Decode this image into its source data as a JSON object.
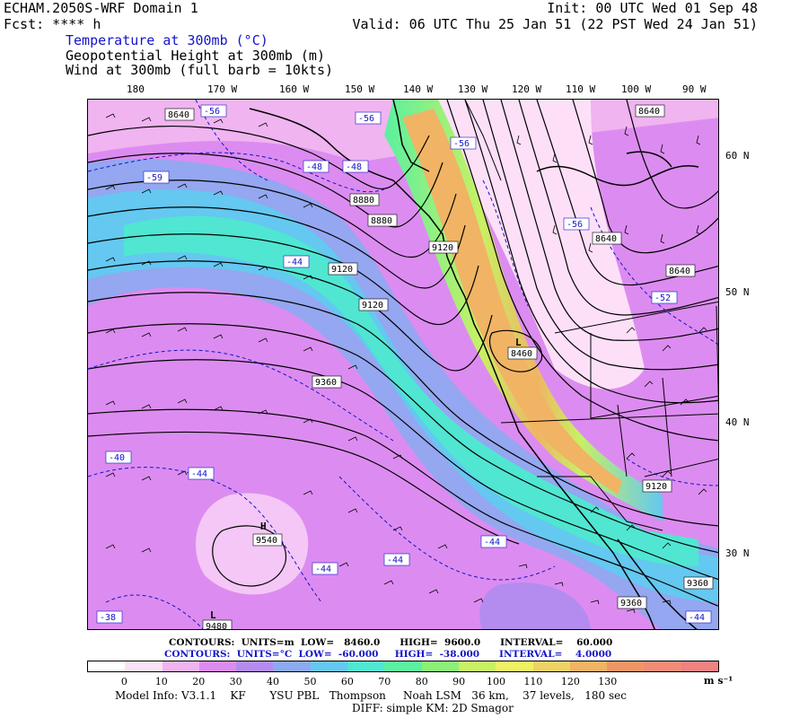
{
  "header": {
    "model": "ECHAM.2050S-WRF Domain 1",
    "fcst": "Fcst: **** h",
    "init": "Init: 00 UTC Wed 01 Sep 48",
    "valid": "Valid: 06 UTC Thu 25 Jan 51 (22 PST Wed 24 Jan 51)",
    "field1": "Temperature at 300mb (°C)",
    "field2": "Geopotential Height at 300mb (m)",
    "field3": "Wind at 300mb (full barb = 10kts)"
  },
  "axes": {
    "longitudes": [
      "180",
      "170 W",
      "160 W",
      "150 W",
      "140 W",
      "130 W",
      "120 W",
      "110 W",
      "100 W",
      "90 W"
    ],
    "latitudes": [
      "60 N",
      "50 N",
      "40 N",
      "30 N"
    ]
  },
  "map_labels": {
    "height": [
      "8640",
      "8640",
      "8880",
      "8880",
      "9120",
      "9120",
      "9360",
      "9360",
      "9360",
      "9120",
      "8640",
      "8460",
      "9540",
      "9480",
      "8640",
      "9120"
    ],
    "temperature": [
      "-56",
      "-56",
      "-56",
      "-59",
      "-48",
      "-48",
      "-44",
      "-56",
      "-52",
      "-40",
      "-44",
      "-44",
      "-44",
      "-44",
      "-38",
      "-44"
    ],
    "highs_lows": [
      "H",
      "L",
      "L"
    ]
  },
  "contour_info": {
    "line1": "CONTOURS:  UNITS=m  LOW=   8460.0      HIGH=  9600.0      INTERVAL=    60.000",
    "line2": "CONTOURS:  UNITS=°C  LOW=  -60.000     HIGH=  -38.000      INTERVAL=    4.0000"
  },
  "colorbar": {
    "colors": [
      "#ffffff",
      "#fde0f8",
      "#f0b4f0",
      "#dc8cf0",
      "#b48cf0",
      "#8caaf0",
      "#64c8f0",
      "#50e6d2",
      "#5af0a0",
      "#8cf078",
      "#c8f064",
      "#f0f064",
      "#f0d264",
      "#f0b464",
      "#f09664",
      "#f08c78",
      "#f08282"
    ],
    "labels": [
      "0",
      "10",
      "20",
      "30",
      "40",
      "50",
      "60",
      "70",
      "80",
      "90",
      "100",
      "110",
      "120",
      "130"
    ],
    "unit": "m s⁻¹"
  },
  "footer": {
    "line1": "Model Info: V3.1.1    KF       YSU PBL   Thompson     Noah LSM   36 km,    37 levels,   180 sec",
    "line2": "DIFF: simple KM: 2D Smagor"
  },
  "colors": {
    "temp_contour": "#1414c8",
    "height_contour": "#000000",
    "jet_core": "#f0a064"
  }
}
